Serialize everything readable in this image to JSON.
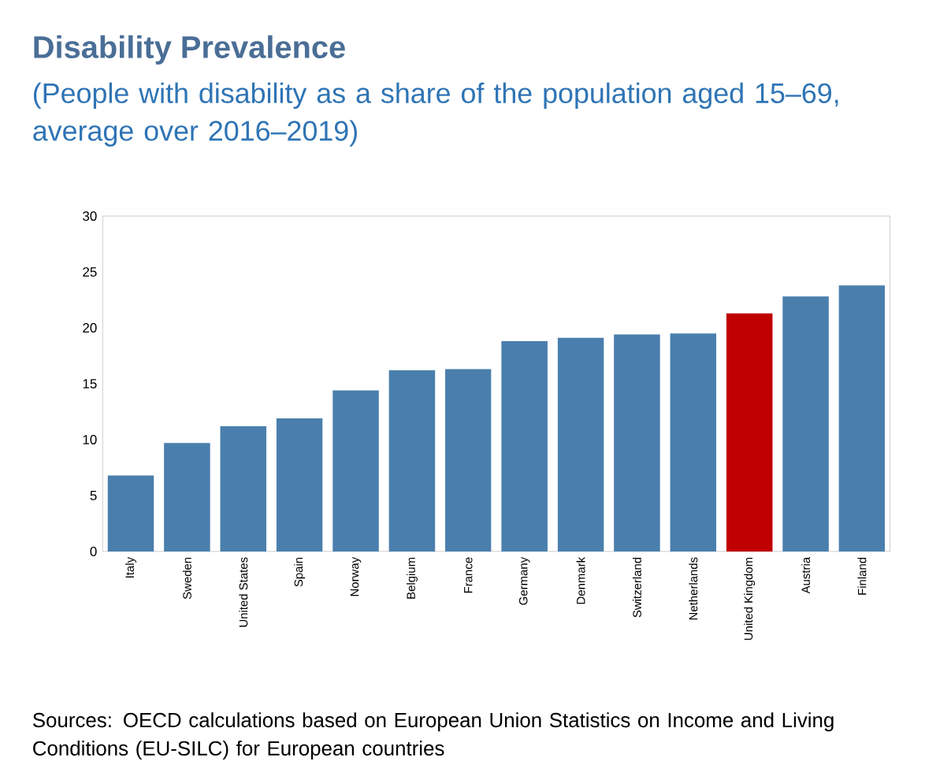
{
  "chart_data": {
    "type": "bar",
    "title": "Disability Prevalence",
    "subtitle": "(People with disability as a share of the population aged 15–69, average over 2016–2019)",
    "categories": [
      "Italy",
      "Sweden",
      "United States",
      "Spain",
      "Norway",
      "Belgium",
      "France",
      "Germany",
      "Denmark",
      "Switzerland",
      "Netherlands",
      "United Kingdom",
      "Austria",
      "Finland"
    ],
    "values": [
      6.8,
      9.7,
      11.2,
      11.9,
      14.4,
      16.2,
      16.3,
      18.8,
      19.1,
      19.4,
      19.5,
      21.3,
      22.8,
      23.8
    ],
    "colors": [
      "#4a7fad",
      "#4a7fad",
      "#4a7fad",
      "#4a7fad",
      "#4a7fad",
      "#4a7fad",
      "#4a7fad",
      "#4a7fad",
      "#4a7fad",
      "#4a7fad",
      "#4a7fad",
      "#c00000",
      "#4a7fad",
      "#4a7fad"
    ],
    "ylim": [
      0,
      30
    ],
    "yticks": [
      0,
      5,
      10,
      15,
      20,
      25,
      30
    ],
    "grid": false,
    "annotations": [
      "Sources: OECD calculations based on European Union Statistics on Income and Living Conditions (EU-SILC) for European countries"
    ]
  }
}
